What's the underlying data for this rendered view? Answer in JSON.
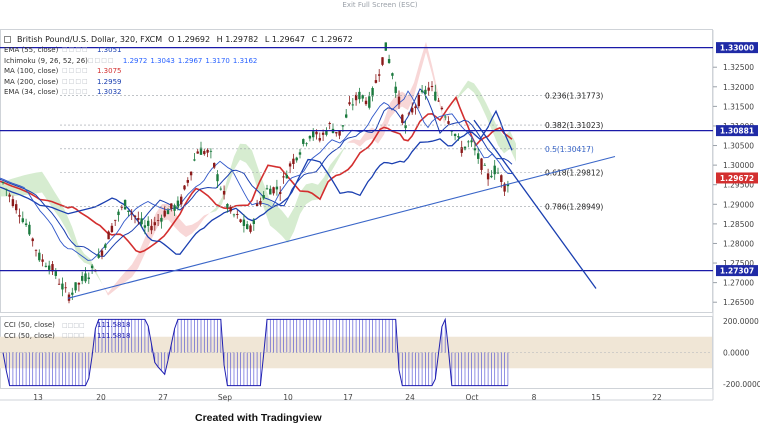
{
  "exit_fullscreen": "Exit Full Screen (ESC)",
  "header": {
    "symbol": "British Pound/U.S. Dollar, 320, FXCM",
    "open": "O 1.29692",
    "high": "H 1.29782",
    "low": "L 1.29647",
    "close": "C 1.29672"
  },
  "indicators": [
    {
      "label": "EMA (55, close)",
      "value": "1.3051",
      "color": "#1a3fb0"
    },
    {
      "label": "Ichimoku (9, 26, 52, 26)",
      "value": "1.2972",
      "extra": [
        "1.3043",
        "1.2967",
        "1.3170",
        "1.3162"
      ],
      "color": "#2962ff"
    },
    {
      "label": "MA (100, close)",
      "value": "1.3075",
      "color": "#d32f2f"
    },
    {
      "label": "MA (200, close)",
      "value": "1.2959",
      "color": "#1a3fb0"
    },
    {
      "label": "EMA (34, close)",
      "value": "1.3032",
      "color": "#1a3fb0"
    }
  ],
  "cci_legend": [
    {
      "label": "CCI (50, close)",
      "value": "111.5818"
    },
    {
      "label": "CCI (50, close)",
      "value": "111.5818"
    }
  ],
  "colors": {
    "up": "#26a69a",
    "down": "#c62828",
    "candle_up": "#1b7a3e",
    "candle_down": "#8b1a1a",
    "level_line": "#1a1aa8",
    "trend_line": "#3a66c8",
    "cloud_bull": "#c8e6c0",
    "cloud_bear": "#f6c9c9",
    "cci_band": "#f0e6d6",
    "cci_line": "#1f1fb0",
    "current_tag": "#d32f2f",
    "level_tag": "#1f2aa6"
  },
  "footer": "Created with Tradingview",
  "chart_data": {
    "type": "candlestick",
    "title": "British Pound/U.S. Dollar, 320, FXCM",
    "y_axis": {
      "ticks": [
        "1.32500",
        "1.32000",
        "1.31500",
        "1.31000",
        "1.30500",
        "1.30000",
        "1.29500",
        "1.29000",
        "1.28500",
        "1.28000",
        "1.27500",
        "1.27000",
        "1.26500"
      ],
      "ylim": [
        1.2625,
        1.3345
      ]
    },
    "x_axis": {
      "ticks": [
        "13",
        "20",
        "27",
        "Sep",
        "10",
        "17",
        "24",
        "Oct",
        "8",
        "15",
        "22"
      ]
    },
    "horizontal_levels": [
      {
        "label": "1.33000",
        "value": 1.33
      },
      {
        "label": "1.30881",
        "value": 1.30881
      },
      {
        "label": "1.27307",
        "value": 1.27307
      }
    ],
    "current_price": {
      "label": "1.29672",
      "value": 1.29672
    },
    "fibonacci": [
      {
        "label": "0.236(1.31773)",
        "value": 1.31773
      },
      {
        "label": "0.382(1.31023)",
        "value": 1.31023
      },
      {
        "label": "0.5(1.30417)",
        "value": 1.30417
      },
      {
        "label": "0.618(1.29812)",
        "value": 1.29812
      },
      {
        "label": "0.786(1.28949)",
        "value": 1.28949
      }
    ],
    "cci": {
      "ticks": [
        "200.0000",
        "0.0000",
        "-200.0000"
      ],
      "ylim": [
        -225,
        225
      ],
      "band": [
        -100,
        100
      ]
    }
  }
}
